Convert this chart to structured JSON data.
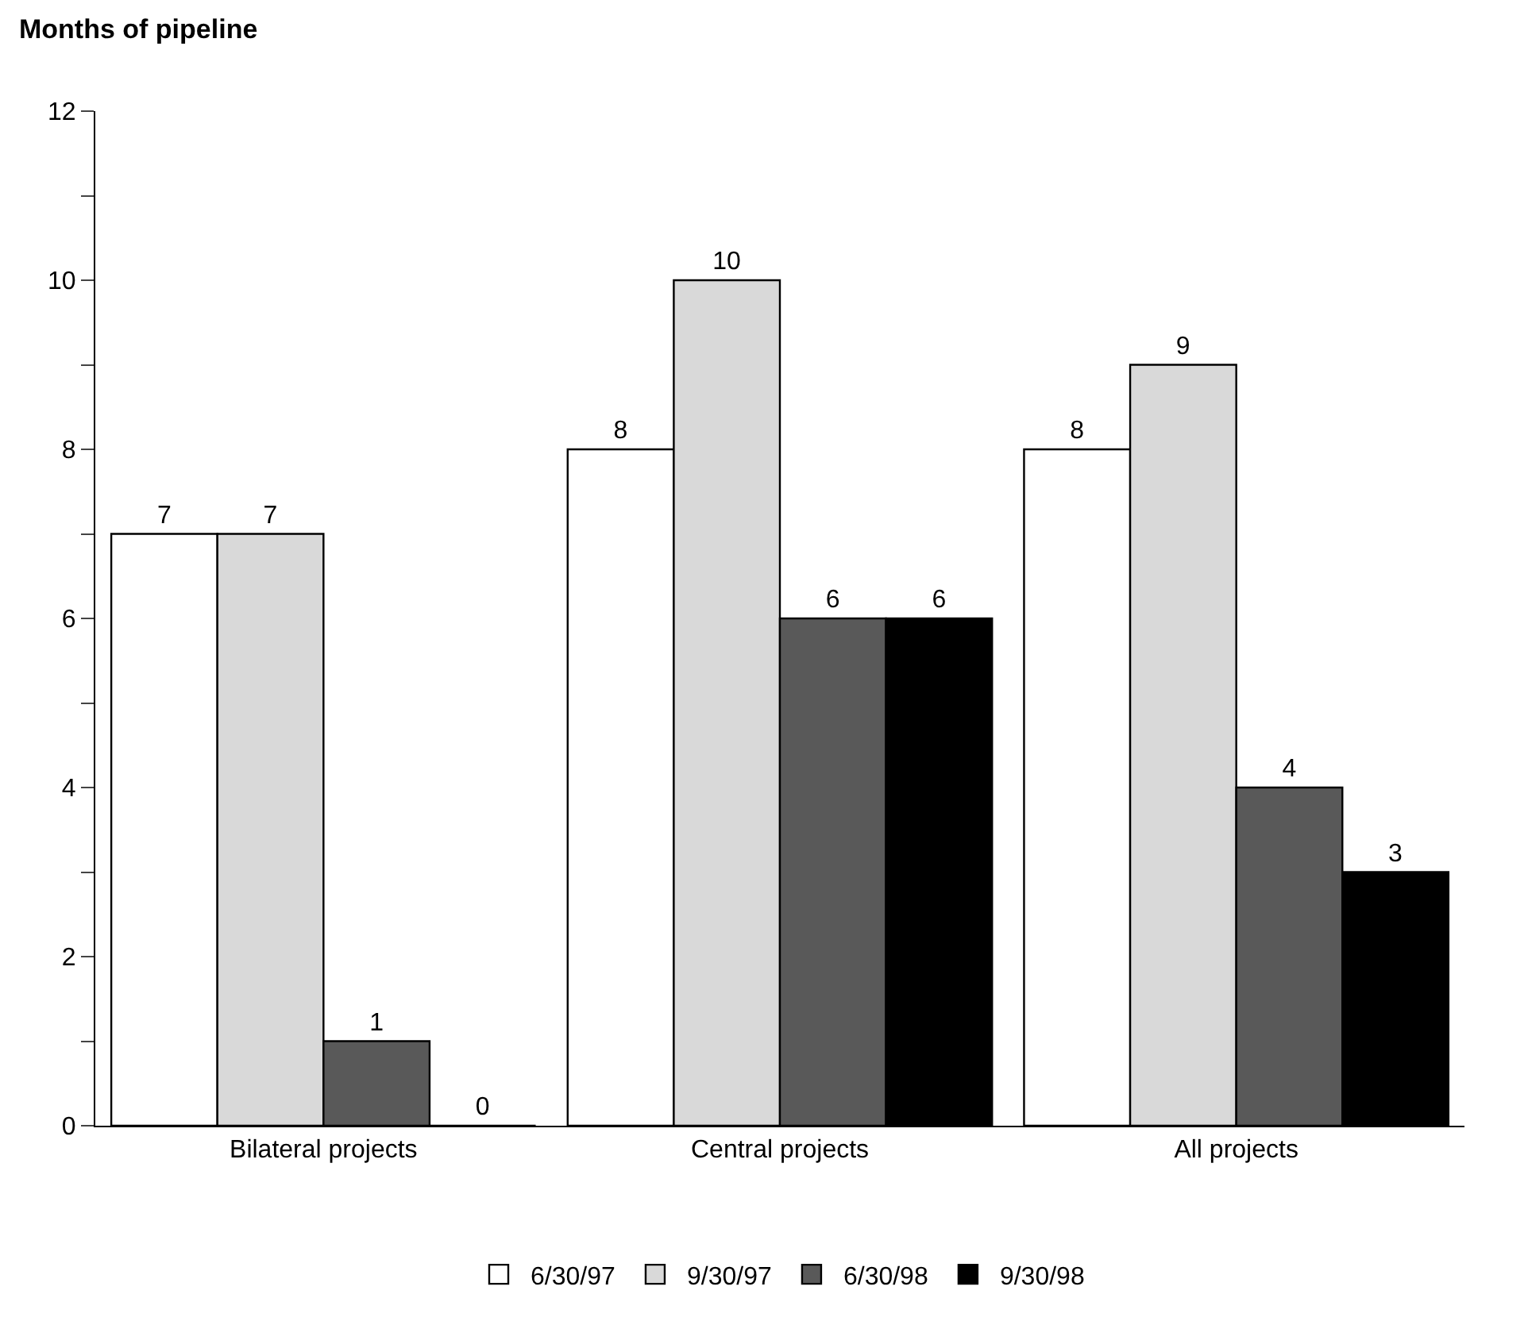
{
  "chart_data": {
    "type": "bar",
    "ylabel": "Months of pipeline",
    "categories": [
      "Bilateral projects",
      "Central projects",
      "All projects"
    ],
    "series": [
      {
        "name": "6/30/97",
        "color": "#ffffff",
        "values": [
          7,
          8,
          8
        ]
      },
      {
        "name": "9/30/97",
        "color": "#d9d9d9",
        "values": [
          7,
          10,
          9
        ]
      },
      {
        "name": "6/30/98",
        "color": "#595959",
        "values": [
          1,
          6,
          4
        ]
      },
      {
        "name": "9/30/98",
        "color": "#000000",
        "values": [
          0,
          6,
          3
        ]
      }
    ],
    "ylim": [
      0,
      12
    ],
    "yticks": [
      0,
      {
        "value": 1,
        "label": null
      },
      2,
      {
        "value": 3,
        "label": null
      },
      4,
      {
        "value": 5,
        "label": null
      },
      6,
      {
        "value": 7,
        "label": null
      },
      8,
      {
        "value": 9,
        "label": null
      },
      10,
      {
        "value": 11,
        "label": null
      },
      12
    ],
    "data_labels": true,
    "grid": false,
    "legend": "bottom"
  }
}
